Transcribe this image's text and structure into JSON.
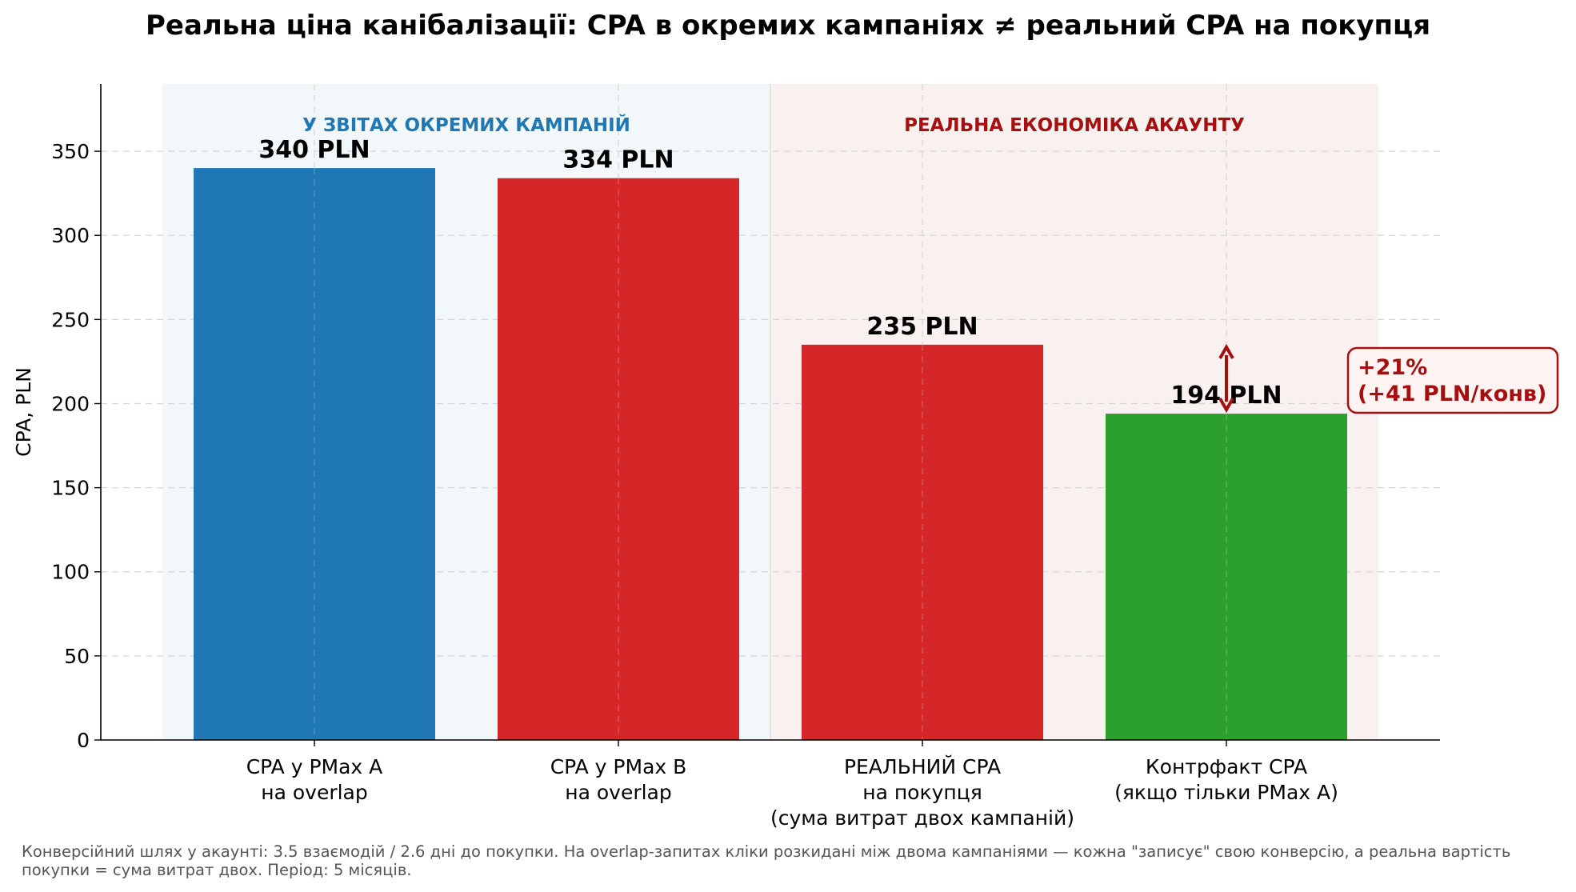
{
  "title": "Реальна ціна канібалізації: CPA в окремих кампаніях ≠ реальний CPA на покупця",
  "footnote": "Конверсійний шлях у акаунті: 3.5 взаємодій / 2.6 дні до покупки.  На overlap-запитах кліки розкидані між двома кампаніями — кожна \"записує\" свою конверсію, а реальна вартість покупки = сума витрат двох. Період: 5 місяців.",
  "chart_data": {
    "type": "bar",
    "title": "Реальна ціна канібалізації: CPA в окремих кампаніях ≠ реальний CPA на покупця",
    "ylabel": "CPA, PLN",
    "xlabel": "",
    "ylim": [
      0,
      390
    ],
    "yticks": [
      0,
      50,
      100,
      150,
      200,
      250,
      300,
      350
    ],
    "grid": true,
    "categories": [
      [
        "CPA у PMax A",
        "на overlap"
      ],
      [
        "CPA у PMax B",
        "на overlap"
      ],
      [
        "РЕАЛЬНИЙ CPA",
        "на покупця",
        "(сума витрат двох кампаній)"
      ],
      [
        "Контрфакт CPA",
        "(якщо тільки PMax A)"
      ]
    ],
    "values": [
      340,
      334,
      235,
      194
    ],
    "value_labels": [
      "340 PLN",
      "334 PLN",
      "235 PLN",
      "194 PLN"
    ],
    "bar_colors": [
      "#1f77b4",
      "#d62728",
      "#d62728",
      "#2ca02c"
    ],
    "regions": [
      {
        "label": "У ЗВІТАХ ОКРЕМИХ КАМПАНІЙ",
        "from_bar": 0,
        "to_bar": 1,
        "fill": "#f2f7fa",
        "text_color": "#1f77b4"
      },
      {
        "label": "РЕАЛЬНА ЕКОНОМІКА АКАУНТУ",
        "from_bar": 2,
        "to_bar": 3,
        "fill": "#f9f0f0",
        "text_color": "#a50f0f"
      }
    ],
    "annotation": {
      "lines": [
        "+21%",
        "(+41 PLN/конв)"
      ],
      "from_value": 194,
      "to_value": 235,
      "color": "#a50f0f",
      "box_fill": "#fff4f1"
    }
  }
}
